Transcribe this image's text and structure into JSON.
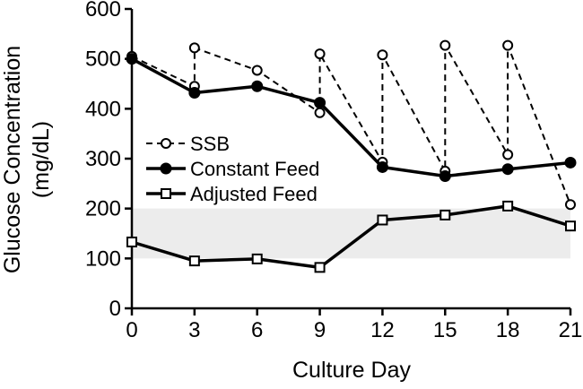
{
  "chart_data": {
    "type": "line",
    "title": "",
    "xlabel": "Culture Day",
    "ylabel_line1": "Glucose Concentration",
    "ylabel_line2": "(mg/dL)",
    "xlim": [
      0,
      21
    ],
    "ylim": [
      0,
      600
    ],
    "xticks": [
      0,
      3,
      6,
      9,
      12,
      15,
      18,
      21
    ],
    "yticks": [
      0,
      100,
      200,
      300,
      400,
      500,
      600
    ],
    "grid": false,
    "legend_position": "center-left",
    "target_band": {
      "low": 100,
      "high": 200,
      "color": "#ececec"
    },
    "series": [
      {
        "name": "SSB",
        "style": "dashed",
        "marker": "circle-open",
        "color": "#000000",
        "points": [
          [
            0,
            505
          ],
          [
            3,
            445
          ],
          [
            3,
            522
          ],
          [
            6,
            477
          ],
          [
            9,
            392
          ],
          [
            9,
            510
          ],
          [
            12,
            293
          ],
          [
            12,
            508
          ],
          [
            15,
            275
          ],
          [
            15,
            527
          ],
          [
            18,
            308
          ],
          [
            18,
            527
          ],
          [
            21,
            208
          ]
        ]
      },
      {
        "name": "Constant Feed",
        "style": "solid",
        "marker": "circle-filled",
        "color": "#000000",
        "points": [
          [
            0,
            500
          ],
          [
            3,
            432
          ],
          [
            6,
            445
          ],
          [
            9,
            412
          ],
          [
            12,
            283
          ],
          [
            15,
            265
          ],
          [
            18,
            279
          ],
          [
            21,
            292
          ]
        ]
      },
      {
        "name": "Adjusted Feed",
        "style": "solid",
        "marker": "square-open",
        "color": "#000000",
        "points": [
          [
            0,
            133
          ],
          [
            3,
            95
          ],
          [
            6,
            99
          ],
          [
            9,
            82
          ],
          [
            12,
            177
          ],
          [
            15,
            187
          ],
          [
            18,
            205
          ],
          [
            21,
            165
          ]
        ]
      }
    ]
  }
}
